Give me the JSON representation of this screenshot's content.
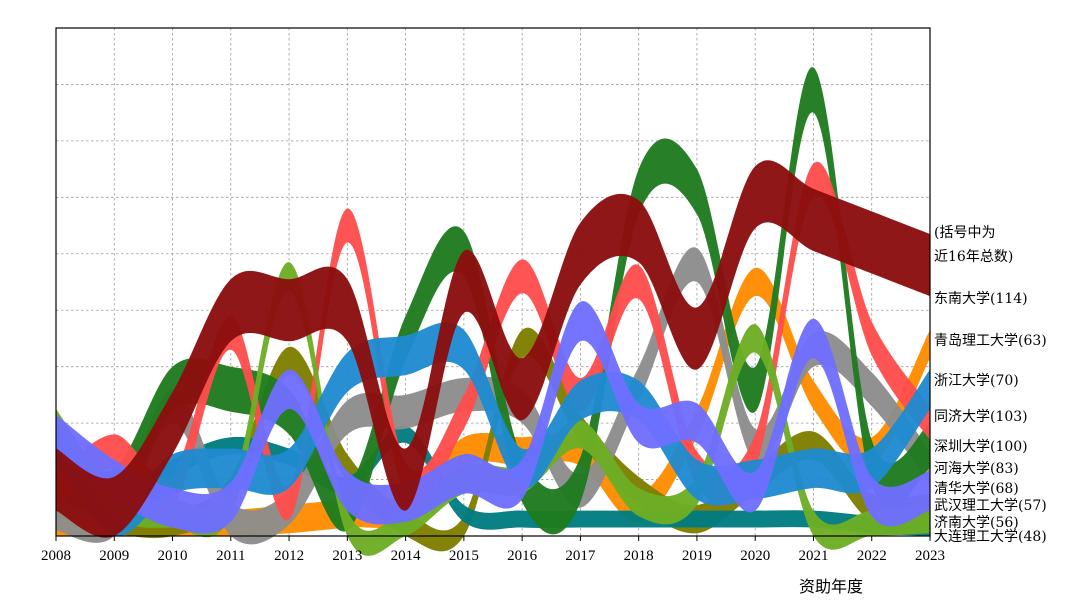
{
  "chart_data": {
    "type": "area",
    "xlabel": "资助年度",
    "ylabel": "",
    "x": [
      2008,
      2009,
      2010,
      2011,
      2012,
      2013,
      2014,
      2015,
      2016,
      2017,
      2018,
      2019,
      2020,
      2021,
      2022,
      2023
    ],
    "ylim": [
      0,
      9
    ],
    "grid": true,
    "legend_position": "right",
    "note": [
      "(括号中为",
      "近16年总数)"
    ],
    "series": [
      {
        "name": "东南大学(114)",
        "color": "#8B0E0E",
        "values": [
          1,
          0.5,
          2,
          4,
          4,
          4,
          1,
          4.5,
          2.6,
          5,
          5.4,
          3.5,
          6,
          5.6,
          5.2,
          4.8
        ]
      },
      {
        "name": "青岛理工大学(63)",
        "color": "#FF8C00",
        "values": [
          0.1,
          0.05,
          0.1,
          0.2,
          0.3,
          0.4,
          0.5,
          1.5,
          1.5,
          1.5,
          0.5,
          2,
          4.5,
          2.5,
          1.5,
          3.4
        ]
      },
      {
        "name": "浙江大学(70)",
        "color": "#1F8AD0",
        "values": [
          1.6,
          0.3,
          1.1,
          1.2,
          1.2,
          2.9,
          3.2,
          3.3,
          1.2,
          2.4,
          2.4,
          1,
          1,
          1.2,
          1.2,
          2.6
        ]
      },
      {
        "name": "同济大学(103)",
        "color": "#FF4D4D",
        "values": [
          0.8,
          1.5,
          0.8,
          3.6,
          0.6,
          5.5,
          1,
          2.2,
          4.6,
          2.5,
          4.5,
          1.2,
          1.5,
          6.3,
          3.5,
          2
        ]
      },
      {
        "name": "深圳大学(100)",
        "color": "#1E7B1E",
        "values": [
          1.2,
          0.8,
          2.6,
          2.6,
          2.2,
          0.5,
          3.5,
          5,
          1,
          1,
          6.1,
          6.1,
          2.6,
          7.9,
          1.3,
          1.6
        ]
      },
      {
        "name": "河海大学(83)",
        "color": "#8C8C8C",
        "values": [
          0.4,
          0.2,
          2.3,
          0.3,
          0.5,
          2.1,
          2.2,
          2.5,
          2.3,
          0.8,
          2.7,
          4.8,
          1.6,
          3.3,
          2.6,
          1.2
        ]
      },
      {
        "name": "清华大学(68)",
        "color": "#6E6EFF",
        "values": [
          1.8,
          1,
          0.5,
          0.6,
          2.6,
          0.8,
          0.6,
          1.1,
          1,
          3.8,
          2,
          2,
          0.8,
          3.5,
          0.7,
          0.8
        ]
      },
      {
        "name": "武汉理工大学(57)",
        "color": "#7E7E00",
        "values": [
          0.6,
          0.3,
          0.2,
          0.8,
          3.1,
          1.2,
          0.2,
          0.1,
          3.4,
          1.9,
          0.8,
          0.3,
          1,
          1.6,
          0.5,
          0.5
        ]
      },
      {
        "name": "济南大学(56)",
        "color": "#6DAE24",
        "values": [
          2,
          0.6,
          0.4,
          0.6,
          4.6,
          0.2,
          0.2,
          1,
          1,
          1.8,
          0.6,
          0.8,
          3.5,
          0.2,
          0.2,
          0.3
        ]
      },
      {
        "name": "大连理工大学(48)",
        "color": "#007C80",
        "values": [
          0.6,
          0.5,
          1.2,
          1.6,
          1.4,
          0.9,
          1.8,
          0.4,
          0.3,
          0.3,
          0.3,
          0.3,
          0.3,
          0.3,
          0.2,
          0.1
        ]
      }
    ]
  }
}
